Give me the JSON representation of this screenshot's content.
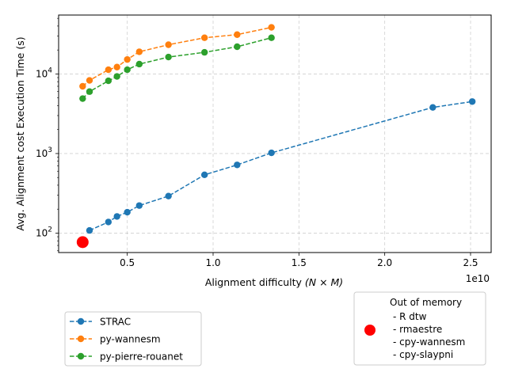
{
  "chart_data": {
    "type": "line",
    "title": "",
    "xlabel": "Alignment difficulty",
    "xlabel_math": "(N × M)",
    "ylabel": "Avg. Alignment cost Execution Time (s)",
    "x_scale": "linear",
    "y_scale": "log",
    "xlim": [
      1000000000.0,
      26200000000.0
    ],
    "ylim": [
      57,
      55000
    ],
    "x_offset_label": "1e10",
    "x_ticks": [
      {
        "value": 5000000000.0,
        "label": "0.5"
      },
      {
        "value": 10000000000.0,
        "label": "1.0"
      },
      {
        "value": 15000000000.0,
        "label": "1.5"
      },
      {
        "value": 20000000000.0,
        "label": "2.0"
      },
      {
        "value": 25000000000.0,
        "label": "2.5"
      }
    ],
    "y_ticks": [
      {
        "value": 100,
        "base": "10",
        "exp": "2"
      },
      {
        "value": 1000,
        "base": "10",
        "exp": "3"
      },
      {
        "value": 10000,
        "base": "10",
        "exp": "4"
      }
    ],
    "grid": true,
    "legend_position": "bottom-left",
    "series": [
      {
        "name": "STRAC",
        "color": "#1f77b4",
        "x": [
          2800000000.0,
          3900000000.0,
          4400000000.0,
          5000000000.0,
          5700000000.0,
          7400000000.0,
          9500000000.0,
          11400000000.0,
          13400000000.0,
          22800000000.0,
          25100000000.0
        ],
        "y": [
          108,
          138,
          162,
          183,
          222,
          292,
          540,
          720,
          1020,
          3800,
          4500
        ]
      },
      {
        "name": "py-wannesm",
        "color": "#ff7f0e",
        "x": [
          2400000000.0,
          2800000000.0,
          3900000000.0,
          4400000000.0,
          5000000000.0,
          5700000000.0,
          7400000000.0,
          9500000000.0,
          11400000000.0,
          13400000000.0
        ],
        "y": [
          7000,
          8300,
          11300,
          12200,
          15200,
          19000,
          23300,
          28500,
          31200,
          38500
        ]
      },
      {
        "name": "py-pierre-rouanet",
        "color": "#2ca02c",
        "x": [
          2400000000.0,
          2800000000.0,
          3900000000.0,
          4400000000.0,
          5000000000.0,
          5700000000.0,
          7400000000.0,
          9500000000.0,
          11400000000.0,
          13400000000.0
        ],
        "y": [
          4900,
          6000,
          8200,
          9300,
          11300,
          13300,
          16300,
          18700,
          22000,
          28500
        ]
      }
    ],
    "out_of_memory": {
      "title": "Out of memory",
      "color": "#ff0000",
      "x": 2400000000.0,
      "y": 77,
      "items": [
        "- R dtw",
        "- rmaestre",
        "- cpy-wannesm",
        "- cpy-slaypni"
      ]
    }
  }
}
